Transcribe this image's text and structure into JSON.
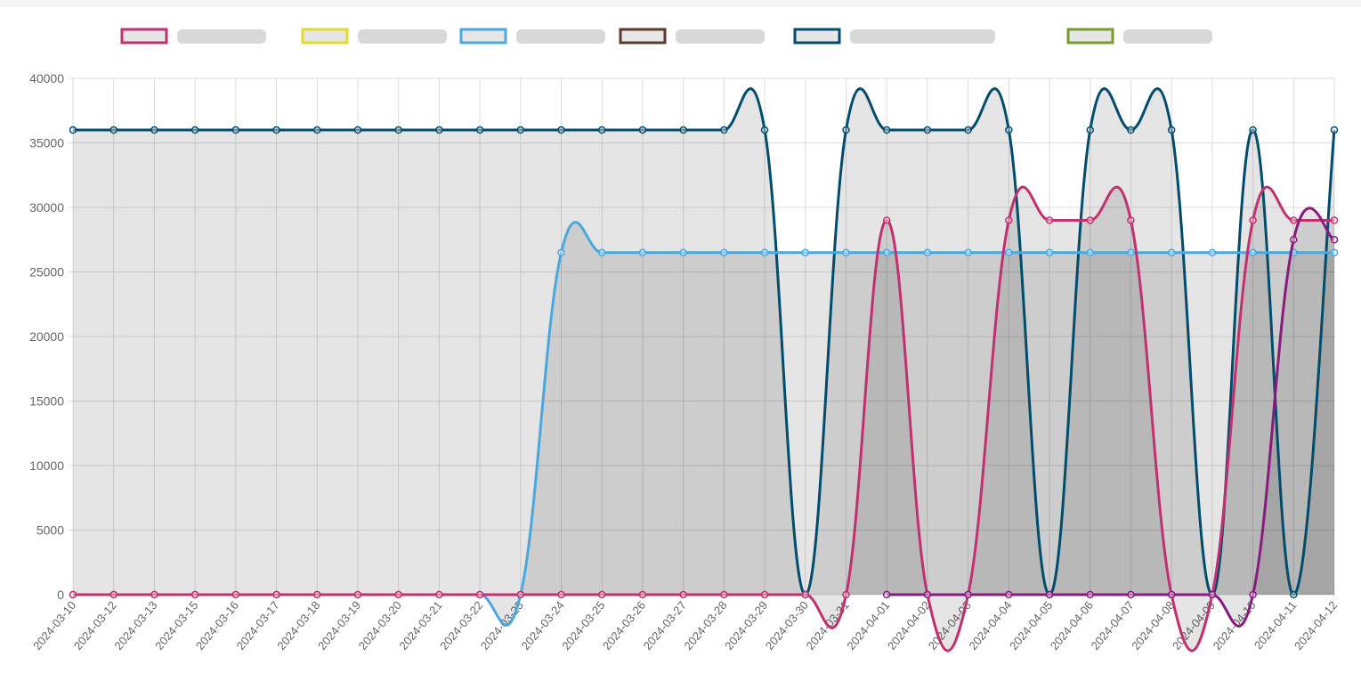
{
  "chart_data": {
    "type": "line",
    "categories": [
      "2024-03-10",
      "2024-03-12",
      "2024-03-13",
      "2024-03-15",
      "2024-03-16",
      "2024-03-17",
      "2024-03-18",
      "2024-03-19",
      "2024-03-20",
      "2024-03-21",
      "2024-03-22",
      "2024-03-23",
      "2024-03-24",
      "2024-03-25",
      "2024-03-26",
      "2024-03-27",
      "2024-03-28",
      "2024-03-29",
      "2024-03-30",
      "2024-03-31",
      "2024-04-01",
      "2024-04-02",
      "2024-04-03",
      "2024-04-04",
      "2024-04-05",
      "2024-04-06",
      "2024-04-07",
      "2024-04-08",
      "2024-04-09",
      "2024-04-10",
      "2024-04-11",
      "2024-04-12"
    ],
    "series": [
      {
        "color": "#004c6d",
        "values": [
          36000,
          36000,
          36000,
          36000,
          36000,
          36000,
          36000,
          36000,
          36000,
          36000,
          36000,
          36000,
          36000,
          36000,
          36000,
          36000,
          36000,
          36000,
          0,
          36000,
          36000,
          36000,
          36000,
          36000,
          0,
          36000,
          36000,
          36000,
          0,
          36000,
          0,
          36000
        ]
      },
      {
        "color": "#4aa8df",
        "values": [
          0,
          0,
          0,
          0,
          0,
          0,
          0,
          0,
          0,
          0,
          0,
          0,
          26500,
          26500,
          26500,
          26500,
          26500,
          26500,
          26500,
          26500,
          26500,
          26500,
          26500,
          26500,
          26500,
          26500,
          26500,
          26500,
          26500,
          26500,
          26500,
          26500
        ]
      },
      {
        "color": "#c2306f",
        "values": [
          0,
          0,
          0,
          0,
          0,
          0,
          0,
          0,
          0,
          0,
          0,
          0,
          0,
          0,
          0,
          0,
          0,
          0,
          0,
          0,
          29000,
          0,
          0,
          29000,
          29000,
          29000,
          29000,
          0,
          0,
          29000,
          29000,
          29000
        ]
      },
      {
        "color": "#8b1a7e",
        "values": [
          null,
          null,
          null,
          null,
          null,
          null,
          null,
          null,
          null,
          null,
          null,
          null,
          null,
          null,
          null,
          null,
          null,
          null,
          null,
          null,
          0,
          0,
          0,
          0,
          0,
          0,
          0,
          0,
          0,
          0,
          27500,
          27500
        ]
      }
    ],
    "legend_colors": [
      "#c2306f",
      "#e0dc2b",
      "#4aa8df",
      "#5a3a2e",
      "#004c6d",
      "#7a9a2e"
    ],
    "ylim": [
      0,
      40000
    ],
    "yticks": [
      0,
      5000,
      10000,
      15000,
      20000,
      25000,
      30000,
      35000,
      40000
    ],
    "grid": true
  }
}
